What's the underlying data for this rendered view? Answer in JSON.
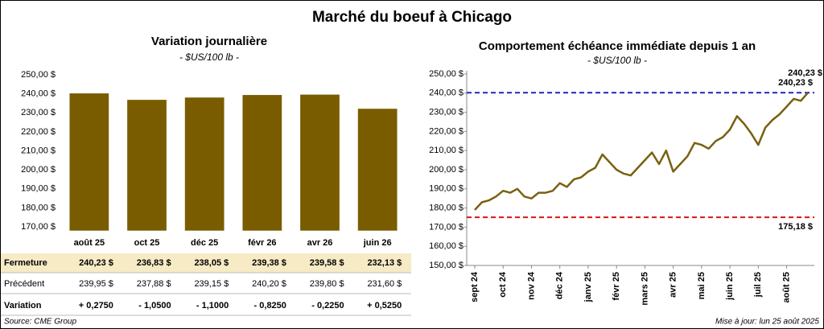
{
  "title": "Marché du boeuf à Chicago",
  "chart_data": [
    {
      "type": "bar",
      "title": "Variation journalière",
      "subtitle": "- $US/100 lb -",
      "categories": [
        "août 25",
        "oct 25",
        "déc 25",
        "févr 26",
        "avr 26",
        "juin 26"
      ],
      "values": [
        240.23,
        236.83,
        238.05,
        239.38,
        239.58,
        232.13
      ],
      "color": "#7a5c00",
      "ylim": [
        168,
        250
      ],
      "yticks": [
        {
          "value": 170,
          "label": "170,00 $"
        },
        {
          "value": 180,
          "label": "180,00 $"
        },
        {
          "value": 190,
          "label": "190,00 $"
        },
        {
          "value": 200,
          "label": "200,00 $"
        },
        {
          "value": 210,
          "label": "210,00 $"
        },
        {
          "value": 220,
          "label": "220,00 $"
        },
        {
          "value": 230,
          "label": "230,00 $"
        },
        {
          "value": 240,
          "label": "240,00 $"
        },
        {
          "value": 250,
          "label": "250,00 $"
        }
      ]
    },
    {
      "type": "line",
      "title": "Comportement échéance immédiate depuis 1 an",
      "subtitle": "- $US/100 lb -",
      "categories": [
        "sept 24",
        null,
        null,
        null,
        "oct 24",
        null,
        null,
        null,
        "nov 24",
        null,
        null,
        null,
        "déc 24",
        null,
        null,
        null,
        "janv 25",
        null,
        null,
        null,
        "févr 25",
        null,
        null,
        null,
        "mars 25",
        null,
        null,
        null,
        "avr 25",
        null,
        null,
        null,
        "mai 25",
        null,
        null,
        null,
        "juin 25",
        null,
        null,
        null,
        "juil 25",
        null,
        null,
        null,
        "août 25",
        null,
        null,
        null
      ],
      "series": [
        {
          "name": "Échéance immédiate",
          "color": "#7a6010",
          "values": [
            179,
            183,
            184,
            186,
            189,
            188,
            190,
            186,
            185,
            188,
            188,
            189,
            193,
            191,
            195,
            196,
            199,
            201,
            208,
            204,
            200,
            198,
            197,
            201,
            205,
            209,
            203,
            210,
            199,
            203,
            207,
            214,
            213,
            211,
            215,
            217,
            221,
            228,
            224,
            219,
            213,
            222,
            226,
            229,
            233,
            237,
            236,
            240.23
          ],
          "end_label": "240,23 $"
        }
      ],
      "hlines": [
        {
          "value": 240.23,
          "label": "240,23 $",
          "color": "#2222bb"
        },
        {
          "value": 175.18,
          "label": "175,18 $",
          "color": "#e01010"
        }
      ],
      "ylim": [
        150,
        250
      ],
      "yticks": [
        {
          "value": 150,
          "label": "150,00 $"
        },
        {
          "value": 160,
          "label": "160,00 $"
        },
        {
          "value": 170,
          "label": "170,00 $"
        },
        {
          "value": 180,
          "label": "180,00 $"
        },
        {
          "value": 190,
          "label": "190,00 $"
        },
        {
          "value": 200,
          "label": "200,00 $"
        },
        {
          "value": 210,
          "label": "210,00 $"
        },
        {
          "value": 220,
          "label": "220,00 $"
        },
        {
          "value": 230,
          "label": "230,00 $"
        },
        {
          "value": 240,
          "label": "240,00 $"
        },
        {
          "value": 250,
          "label": "250,00 $"
        }
      ]
    }
  ],
  "table": {
    "rows": [
      {
        "label": "Fermeture",
        "label_color": "#8a6a00",
        "background": "#f7ebc6",
        "cells": [
          "240,23 $",
          "236,83 $",
          "238,05 $",
          "239,38 $",
          "239,58 $",
          "232,13 $"
        ],
        "colors": [
          "#8a6a00",
          "#8a6a00",
          "#8a6a00",
          "#8a6a00",
          "#8a6a00",
          "#8a6a00"
        ]
      },
      {
        "label": "Précédent",
        "label_color": "#000000",
        "background": "#ffffff",
        "cells": [
          "239,95 $",
          "237,88 $",
          "239,15 $",
          "240,20 $",
          "239,80 $",
          "231,60 $"
        ],
        "colors": [
          "#000000",
          "#000000",
          "#000000",
          "#000000",
          "#000000",
          "#000000"
        ]
      },
      {
        "label": "Variation",
        "label_color": "#000000",
        "background": "#ffffff",
        "cells": [
          "+ 0,2750",
          "- 1,0500",
          "- 1,1000",
          "- 0,8250",
          "- 0,2250",
          "+ 0,5250"
        ],
        "colors": [
          "#1a8a1a",
          "#e01010",
          "#e01010",
          "#e01010",
          "#e01010",
          "#1a8a1a"
        ]
      }
    ]
  },
  "footer": {
    "source": "Source: CME Group",
    "updated": "Mise à jour: lun 25 août 2025"
  }
}
